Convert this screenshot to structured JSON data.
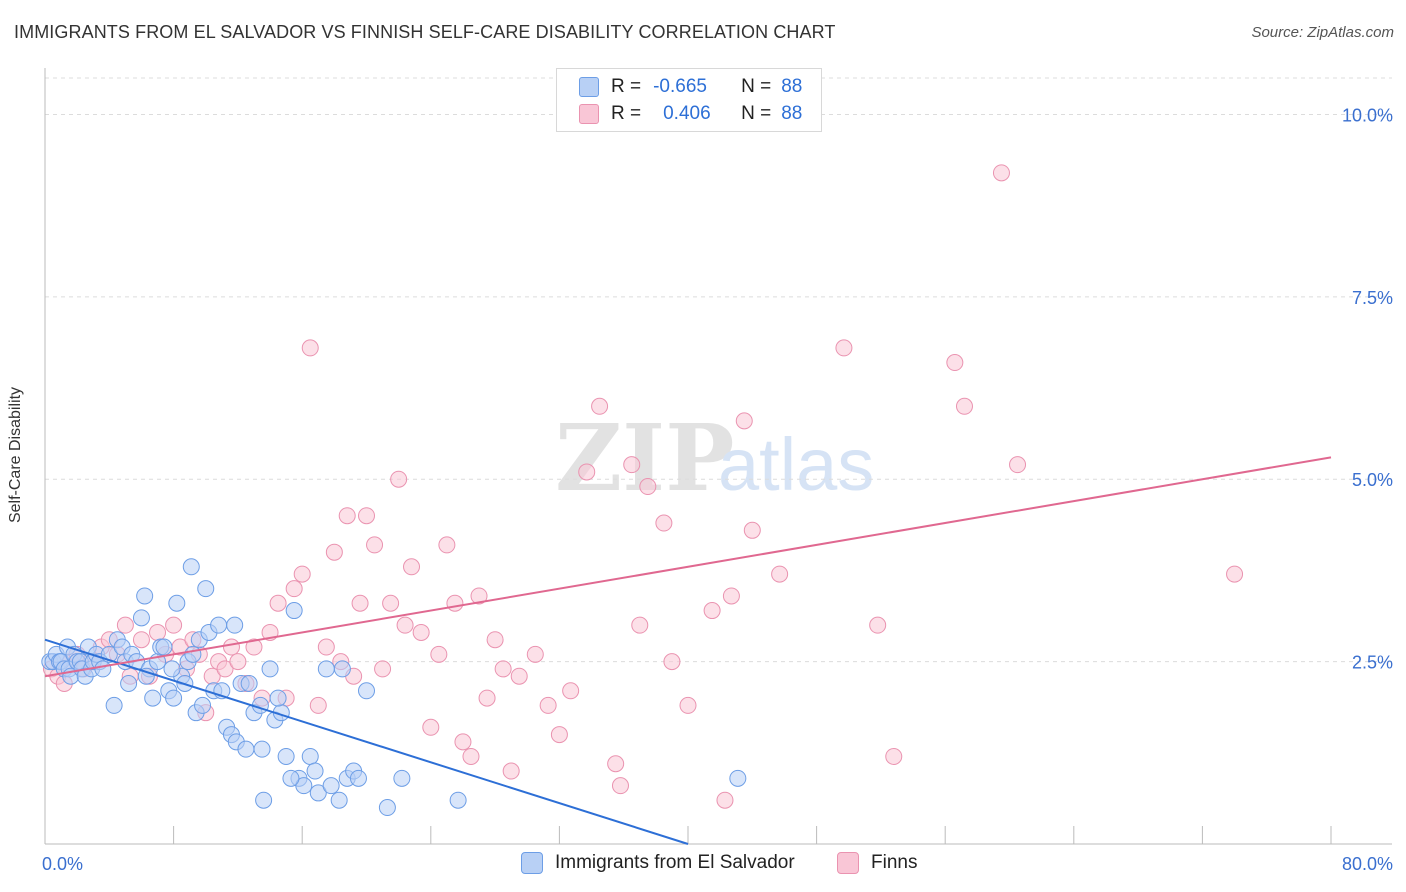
{
  "title": "IMMIGRANTS FROM EL SALVADOR VS FINNISH SELF-CARE DISABILITY CORRELATION CHART",
  "source": "Source: ZipAtlas.com",
  "watermark": {
    "zip": "ZIP",
    "atlas": "atlas"
  },
  "legend": {
    "rows": [
      {
        "r_label": "R =",
        "r_value": "-0.665",
        "n_label": "N =",
        "n_value": "88"
      },
      {
        "r_label": "R =",
        "r_value": "0.406",
        "n_label": "N =",
        "n_value": "88"
      }
    ]
  },
  "colors": {
    "blue_fill": "#b8d0f5",
    "blue_stroke": "#6d9ee6",
    "blue_line": "#2d6fd6",
    "pink_fill": "#f9c6d6",
    "pink_stroke": "#ea93b0",
    "pink_line": "#e06890",
    "tick_label": "#3a6fcf",
    "grid": "#dcdcdc"
  },
  "chart_data": {
    "type": "scatter",
    "title": "IMMIGRANTS FROM EL SALVADOR VS FINNISH SELF-CARE DISABILITY CORRELATION CHART",
    "xlabel": "",
    "ylabel": "Self-Care Disability",
    "xlim": [
      0,
      80
    ],
    "ylim": [
      0,
      10.5
    ],
    "x_tick_labels": [
      "0.0%",
      "80.0%"
    ],
    "y_ticks": [
      2.5,
      5.0,
      7.5,
      10.0
    ],
    "y_tick_labels": [
      "2.5%",
      "5.0%",
      "7.5%",
      "10.0%"
    ],
    "grid": "horizontal dashed",
    "legend_position": "top-center",
    "series": [
      {
        "name": "Immigrants from El Salvador",
        "r": -0.665,
        "n": 88,
        "trend": {
          "x": [
            0,
            40
          ],
          "y": [
            2.8,
            0.0
          ]
        },
        "points": [
          [
            0.3,
            2.5
          ],
          [
            0.5,
            2.5
          ],
          [
            0.7,
            2.6
          ],
          [
            0.9,
            2.5
          ],
          [
            1.0,
            2.5
          ],
          [
            1.2,
            2.4
          ],
          [
            1.4,
            2.7
          ],
          [
            1.5,
            2.4
          ],
          [
            1.6,
            2.3
          ],
          [
            1.8,
            2.6
          ],
          [
            2.0,
            2.5
          ],
          [
            2.2,
            2.5
          ],
          [
            2.3,
            2.4
          ],
          [
            2.5,
            2.3
          ],
          [
            2.7,
            2.7
          ],
          [
            2.9,
            2.4
          ],
          [
            3.0,
            2.5
          ],
          [
            3.2,
            2.6
          ],
          [
            3.4,
            2.5
          ],
          [
            3.6,
            2.4
          ],
          [
            4.0,
            2.6
          ],
          [
            4.3,
            1.9
          ],
          [
            4.5,
            2.8
          ],
          [
            4.8,
            2.7
          ],
          [
            5.0,
            2.5
          ],
          [
            5.2,
            2.2
          ],
          [
            5.4,
            2.6
          ],
          [
            5.7,
            2.5
          ],
          [
            6.0,
            3.1
          ],
          [
            6.2,
            3.4
          ],
          [
            6.5,
            2.4
          ],
          [
            6.7,
            2.0
          ],
          [
            7.0,
            2.5
          ],
          [
            7.2,
            2.7
          ],
          [
            7.4,
            2.7
          ],
          [
            7.7,
            2.1
          ],
          [
            8.0,
            2.0
          ],
          [
            8.2,
            3.3
          ],
          [
            8.5,
            2.3
          ],
          [
            8.7,
            2.2
          ],
          [
            8.9,
            2.5
          ],
          [
            9.1,
            3.8
          ],
          [
            9.4,
            1.8
          ],
          [
            9.6,
            2.8
          ],
          [
            9.8,
            1.9
          ],
          [
            10.0,
            3.5
          ],
          [
            10.2,
            2.9
          ],
          [
            10.5,
            2.1
          ],
          [
            10.8,
            3.0
          ],
          [
            11.0,
            2.1
          ],
          [
            11.3,
            1.6
          ],
          [
            11.6,
            1.5
          ],
          [
            11.8,
            3.0
          ],
          [
            11.9,
            1.4
          ],
          [
            12.2,
            2.2
          ],
          [
            12.5,
            1.3
          ],
          [
            13.0,
            1.8
          ],
          [
            13.4,
            1.9
          ],
          [
            13.6,
            0.6
          ],
          [
            14.0,
            2.4
          ],
          [
            14.3,
            1.7
          ],
          [
            14.7,
            1.8
          ],
          [
            15.0,
            1.2
          ],
          [
            15.5,
            3.2
          ],
          [
            15.8,
            0.9
          ],
          [
            16.1,
            0.8
          ],
          [
            16.5,
            1.2
          ],
          [
            17.0,
            0.7
          ],
          [
            17.5,
            2.4
          ],
          [
            17.8,
            0.8
          ],
          [
            18.3,
            0.6
          ],
          [
            18.8,
            0.9
          ],
          [
            19.2,
            1.0
          ],
          [
            19.5,
            0.9
          ],
          [
            20.0,
            2.1
          ],
          [
            21.3,
            0.5
          ],
          [
            22.2,
            0.9
          ],
          [
            25.7,
            0.6
          ],
          [
            43.1,
            0.9
          ],
          [
            12.7,
            2.2
          ],
          [
            13.5,
            1.3
          ],
          [
            15.3,
            0.9
          ],
          [
            16.8,
            1.0
          ],
          [
            18.5,
            2.4
          ],
          [
            14.5,
            2.0
          ],
          [
            9.2,
            2.6
          ],
          [
            7.9,
            2.4
          ],
          [
            6.3,
            2.3
          ]
        ]
      },
      {
        "name": "Finns",
        "r": 0.406,
        "n": 88,
        "trend": {
          "x": [
            0,
            80
          ],
          "y": [
            2.3,
            5.3
          ]
        },
        "points": [
          [
            0.4,
            2.4
          ],
          [
            0.8,
            2.3
          ],
          [
            1.2,
            2.2
          ],
          [
            1.6,
            2.5
          ],
          [
            2.0,
            2.6
          ],
          [
            2.4,
            2.4
          ],
          [
            3.0,
            2.5
          ],
          [
            3.5,
            2.7
          ],
          [
            4.0,
            2.8
          ],
          [
            4.5,
            2.6
          ],
          [
            5.0,
            3.0
          ],
          [
            5.3,
            2.3
          ],
          [
            6.0,
            2.8
          ],
          [
            6.5,
            2.3
          ],
          [
            7.0,
            2.9
          ],
          [
            7.5,
            2.6
          ],
          [
            8.0,
            3.0
          ],
          [
            8.4,
            2.7
          ],
          [
            8.8,
            2.4
          ],
          [
            9.2,
            2.8
          ],
          [
            9.6,
            2.6
          ],
          [
            10.0,
            1.8
          ],
          [
            10.4,
            2.3
          ],
          [
            10.8,
            2.5
          ],
          [
            11.2,
            2.4
          ],
          [
            11.6,
            2.7
          ],
          [
            12.0,
            2.5
          ],
          [
            12.5,
            2.2
          ],
          [
            13.0,
            2.7
          ],
          [
            13.5,
            2.0
          ],
          [
            14.0,
            2.9
          ],
          [
            14.5,
            3.3
          ],
          [
            15.0,
            2.0
          ],
          [
            15.5,
            3.5
          ],
          [
            16.0,
            3.7
          ],
          [
            16.5,
            6.8
          ],
          [
            17.0,
            1.9
          ],
          [
            17.5,
            2.7
          ],
          [
            18.0,
            4.0
          ],
          [
            18.4,
            2.5
          ],
          [
            18.8,
            4.5
          ],
          [
            19.2,
            2.3
          ],
          [
            19.6,
            3.3
          ],
          [
            20.0,
            4.5
          ],
          [
            20.5,
            4.1
          ],
          [
            21.0,
            2.4
          ],
          [
            21.5,
            3.3
          ],
          [
            22.0,
            5.0
          ],
          [
            22.4,
            3.0
          ],
          [
            22.8,
            3.8
          ],
          [
            23.4,
            2.9
          ],
          [
            24.0,
            1.6
          ],
          [
            24.5,
            2.6
          ],
          [
            25.0,
            4.1
          ],
          [
            25.5,
            3.3
          ],
          [
            26.0,
            1.4
          ],
          [
            26.5,
            1.2
          ],
          [
            27.0,
            3.4
          ],
          [
            27.5,
            2.0
          ],
          [
            28.0,
            2.8
          ],
          [
            28.5,
            2.4
          ],
          [
            29.0,
            1.0
          ],
          [
            29.5,
            2.3
          ],
          [
            30.5,
            2.6
          ],
          [
            31.3,
            1.9
          ],
          [
            32.0,
            1.5
          ],
          [
            32.7,
            2.1
          ],
          [
            33.7,
            5.1
          ],
          [
            34.5,
            6.0
          ],
          [
            35.5,
            1.1
          ],
          [
            35.8,
            0.8
          ],
          [
            36.5,
            5.2
          ],
          [
            37.0,
            3.0
          ],
          [
            37.5,
            4.9
          ],
          [
            38.5,
            4.4
          ],
          [
            39.0,
            2.5
          ],
          [
            40.0,
            1.9
          ],
          [
            41.5,
            3.2
          ],
          [
            42.3,
            0.6
          ],
          [
            42.7,
            3.4
          ],
          [
            43.5,
            5.8
          ],
          [
            44.0,
            4.3
          ],
          [
            45.7,
            3.7
          ],
          [
            49.7,
            6.8
          ],
          [
            51.8,
            3.0
          ],
          [
            52.8,
            1.2
          ],
          [
            56.6,
            6.6
          ],
          [
            60.5,
            5.2
          ]
        ],
        "extra_points": [
          [
            59.5,
            9.2
          ],
          [
            57.2,
            6.0
          ],
          [
            74.0,
            3.7
          ]
        ]
      }
    ]
  },
  "bottom_legend": {
    "blue_label": "Immigrants from El Salvador",
    "pink_label": "Finns"
  }
}
